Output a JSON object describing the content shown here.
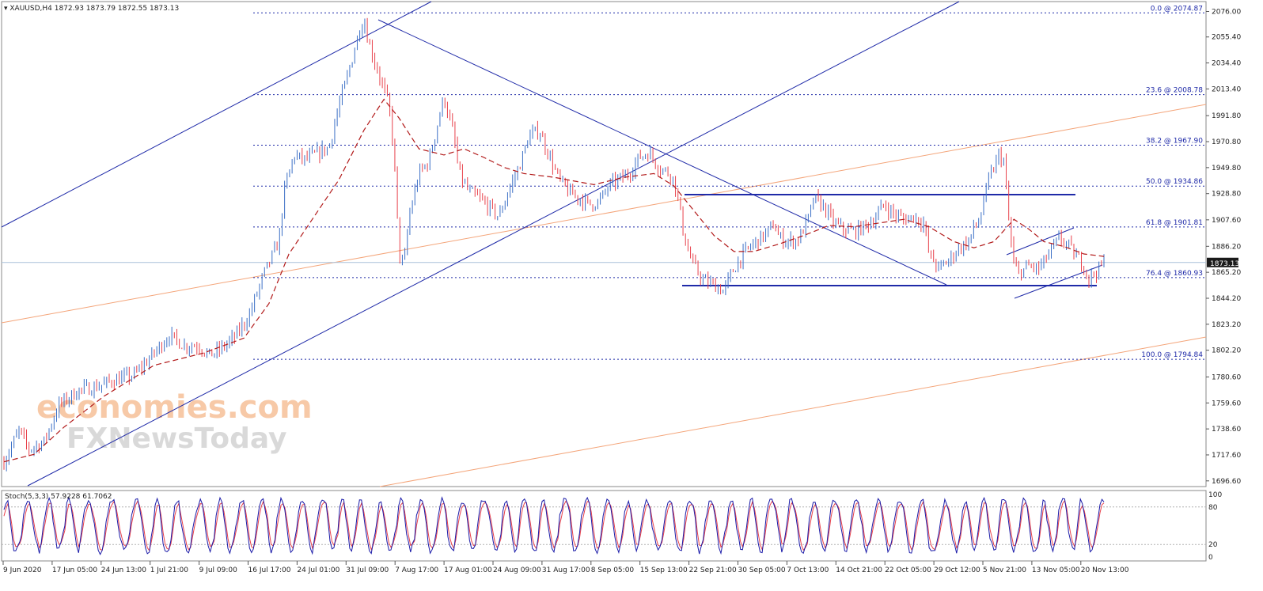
{
  "header": {
    "symbol_label": "▾ XAUUSD,H4  1872.93 1873.79 1872.55 1873.13"
  },
  "watermark": {
    "line1": "economies.com",
    "line2": "FXNewsToday"
  },
  "colors": {
    "background": "#ffffff",
    "candle_up": "#3b6fc6",
    "candle_down": "#e8414b",
    "moving_average": "#b21a1a",
    "trendline": "#1f2aa8",
    "fib_level": "#1f2aa8",
    "orange_channel": "#f4a57a",
    "stoch_main": "#1a1aa8",
    "stoch_signal": "#e8414b",
    "price_tag_bg": "#1a1a1a"
  },
  "chart_data": [
    {
      "type": "candlestick",
      "symbol": "XAUUSD",
      "timeframe": "H4",
      "ohlc_label": "1872.93 1873.79 1872.55 1873.13",
      "current_price": "1873.13",
      "ylim": [
        1692,
        2084
      ],
      "y_ticks": [
        "2076.00",
        "2055.40",
        "2034.40",
        "2013.40",
        "1991.80",
        "1970.80",
        "1949.80",
        "1928.80",
        "1907.60",
        "1886.20",
        "1865.20",
        "1844.20",
        "1823.20",
        "1802.20",
        "1780.60",
        "1759.60",
        "1738.60",
        "1717.60",
        "1696.60"
      ],
      "x_ticks": [
        "9 Jun 2020",
        "17 Jun 05:00",
        "24 Jun 13:00",
        "1 Jul 21:00",
        "9 Jul 09:00",
        "16 Jul 17:00",
        "24 Jul 01:00",
        "31 Jul 09:00",
        "7 Aug 17:00",
        "17 Aug 01:00",
        "24 Aug 09:00",
        "31 Aug 17:00",
        "8 Sep 05:00",
        "15 Sep 13:00",
        "22 Sep 21:00",
        "30 Sep 05:00",
        "7 Oct 13:00",
        "14 Oct 21:00",
        "22 Oct 05:00",
        "29 Oct 12:00",
        "5 Nov 21:00",
        "13 Nov 05:00",
        "20 Nov 13:00"
      ],
      "fibonacci_levels": [
        {
          "label": "0.0 @ 2074.87",
          "value": 2074.87
        },
        {
          "label": "23.6 @ 2008.78",
          "value": 2008.78
        },
        {
          "label": "38.2 @ 1967.90",
          "value": 1967.9
        },
        {
          "label": "50.0 @ 1934.86",
          "value": 1934.86
        },
        {
          "label": "61.8 @ 1901.81",
          "value": 1901.81
        },
        {
          "label": "76.4 @ 1860.93",
          "value": 1860.93
        },
        {
          "label": "100.0 @ 1794.84",
          "value": 1794.84
        }
      ],
      "price_path": [
        [
          0,
          1712
        ],
        [
          3,
          1737
        ],
        [
          5,
          1722
        ],
        [
          8,
          1728
        ],
        [
          11,
          1758
        ],
        [
          15,
          1770
        ],
        [
          18,
          1772
        ],
        [
          22,
          1778
        ],
        [
          26,
          1782
        ],
        [
          29,
          1795
        ],
        [
          33,
          1814
        ],
        [
          36,
          1806
        ],
        [
          39,
          1806
        ],
        [
          41,
          1798
        ],
        [
          43,
          1802
        ],
        [
          46,
          1812
        ],
        [
          49,
          1830
        ],
        [
          52,
          1864
        ],
        [
          55,
          1890
        ],
        [
          56,
          1930
        ],
        [
          58,
          1960
        ],
        [
          60,
          1956
        ],
        [
          62,
          1960
        ],
        [
          65,
          1966
        ],
        [
          67,
          2000
        ],
        [
          69,
          2028
        ],
        [
          71,
          2060
        ],
        [
          72,
          2070
        ],
        [
          73,
          2050
        ],
        [
          75,
          2025
        ],
        [
          77,
          2000
        ],
        [
          78,
          1962
        ],
        [
          79,
          1880
        ],
        [
          80,
          1870
        ],
        [
          81,
          1910
        ],
        [
          83,
          1945
        ],
        [
          85,
          1955
        ],
        [
          87,
          1990
        ],
        [
          88,
          2007
        ],
        [
          90,
          1975
        ],
        [
          91,
          1945
        ],
        [
          93,
          1930
        ],
        [
          95,
          1925
        ],
        [
          97,
          1918
        ],
        [
          99,
          1910
        ],
        [
          101,
          1932
        ],
        [
          103,
          1950
        ],
        [
          105,
          1975
        ],
        [
          107,
          1980
        ],
        [
          109,
          1960
        ],
        [
          111,
          1940
        ],
        [
          113,
          1930
        ],
        [
          115,
          1925
        ],
        [
          117,
          1920
        ],
        [
          119,
          1922
        ],
        [
          121,
          1935
        ],
        [
          123,
          1940
        ],
        [
          125,
          1945
        ],
        [
          127,
          1958
        ],
        [
          129,
          1962
        ],
        [
          131,
          1950
        ],
        [
          133,
          1945
        ],
        [
          134,
          1940
        ],
        [
          135,
          1920
        ],
        [
          136,
          1895
        ],
        [
          137,
          1880
        ],
        [
          138,
          1870
        ],
        [
          140,
          1858
        ],
        [
          142,
          1855
        ],
        [
          144,
          1850
        ],
        [
          145,
          1860
        ],
        [
          146,
          1868
        ],
        [
          147,
          1875
        ],
        [
          149,
          1885
        ],
        [
          151,
          1892
        ],
        [
          153,
          1898
        ],
        [
          154,
          1905
        ],
        [
          155,
          1893
        ],
        [
          157,
          1890
        ],
        [
          159,
          1892
        ],
        [
          161,
          1910
        ],
        [
          162,
          1925
        ],
        [
          164,
          1918
        ],
        [
          166,
          1905
        ],
        [
          168,
          1900
        ],
        [
          170,
          1898
        ],
        [
          172,
          1902
        ],
        [
          174,
          1908
        ],
        [
          176,
          1920
        ],
        [
          178,
          1912
        ],
        [
          180,
          1908
        ],
        [
          182,
          1910
        ],
        [
          184,
          1905
        ],
        [
          185,
          1880
        ],
        [
          187,
          1868
        ],
        [
          189,
          1875
        ],
        [
          191,
          1885
        ],
        [
          193,
          1890
        ],
        [
          194,
          1902
        ],
        [
          195,
          1905
        ],
        [
          196,
          1925
        ],
        [
          197,
          1940
        ],
        [
          198,
          1950
        ],
        [
          199,
          1960
        ],
        [
          200,
          1955
        ],
        [
          201,
          1905
        ],
        [
          202,
          1870
        ],
        [
          203,
          1865
        ],
        [
          205,
          1870
        ],
        [
          207,
          1868
        ],
        [
          209,
          1880
        ],
        [
          211,
          1892
        ],
        [
          212,
          1890
        ],
        [
          213,
          1886
        ],
        [
          214,
          1880
        ],
        [
          215,
          1876
        ],
        [
          216,
          1870
        ],
        [
          217,
          1860
        ],
        [
          218,
          1864
        ],
        [
          219,
          1868
        ],
        [
          220,
          1873
        ]
      ],
      "moving_average_path": [
        [
          0,
          1712
        ],
        [
          6,
          1718
        ],
        [
          12,
          1740
        ],
        [
          20,
          1765
        ],
        [
          30,
          1790
        ],
        [
          40,
          1800
        ],
        [
          48,
          1812
        ],
        [
          53,
          1840
        ],
        [
          57,
          1880
        ],
        [
          62,
          1910
        ],
        [
          67,
          1940
        ],
        [
          72,
          1980
        ],
        [
          76,
          2005
        ],
        [
          79,
          1990
        ],
        [
          83,
          1965
        ],
        [
          88,
          1960
        ],
        [
          92,
          1965
        ],
        [
          96,
          1958
        ],
        [
          100,
          1950
        ],
        [
          104,
          1945
        ],
        [
          110,
          1942
        ],
        [
          118,
          1936
        ],
        [
          124,
          1942
        ],
        [
          130,
          1945
        ],
        [
          134,
          1935
        ],
        [
          138,
          1915
        ],
        [
          142,
          1895
        ],
        [
          146,
          1882
        ],
        [
          150,
          1882
        ],
        [
          155,
          1888
        ],
        [
          160,
          1895
        ],
        [
          165,
          1903
        ],
        [
          170,
          1902
        ],
        [
          175,
          1905
        ],
        [
          180,
          1908
        ],
        [
          185,
          1902
        ],
        [
          190,
          1890
        ],
        [
          194,
          1885
        ],
        [
          198,
          1890
        ],
        [
          202,
          1908
        ],
        [
          205,
          1900
        ],
        [
          208,
          1890
        ],
        [
          212,
          1886
        ],
        [
          216,
          1880
        ],
        [
          220,
          1878
        ]
      ]
    },
    {
      "type": "line",
      "indicator_label": "Stoch(5,3,3) 57.9228 61.7062",
      "series": [
        {
          "name": "57.9228"
        },
        {
          "name": "61.7062"
        }
      ],
      "ylim": [
        0,
        100
      ],
      "y_ticks": [
        "100",
        "80",
        "20",
        "0"
      ],
      "levels": [
        80,
        20
      ]
    }
  ]
}
